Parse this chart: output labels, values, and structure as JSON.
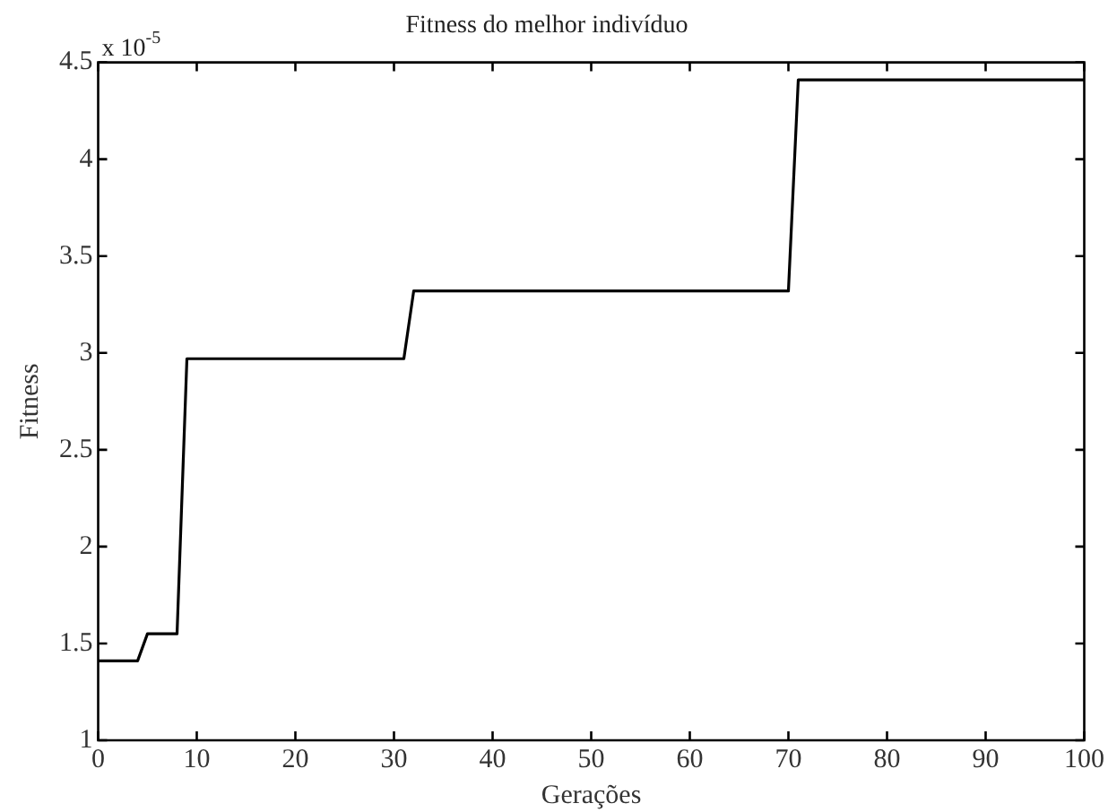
{
  "chart_data": {
    "type": "line",
    "title": "Fitness do melhor indivíduo",
    "xlabel": "Gerações",
    "ylabel": "Fitness",
    "annotations": [
      "x 10$^{-5}$"
    ],
    "series": [
      {
        "color": "#000000",
        "x": [
          0,
          4,
          5,
          8,
          9,
          31,
          32,
          70,
          71,
          100
        ],
        "values": [
          1.41,
          1.41,
          1.55,
          1.55,
          2.97,
          2.97,
          3.32,
          3.32,
          4.41,
          4.41
        ]
      }
    ],
    "xlim": [
      0,
      100
    ],
    "xticks": [
      0,
      10,
      20,
      30,
      40,
      50,
      60,
      70,
      80,
      90,
      100
    ],
    "ylim": [
      1,
      4.5
    ],
    "yticks": [
      1,
      1.5,
      2,
      2.5,
      3,
      3.5,
      4,
      4.5
    ],
    "grid": false,
    "legend": false,
    "marker": "none",
    "line_style": "solid"
  }
}
